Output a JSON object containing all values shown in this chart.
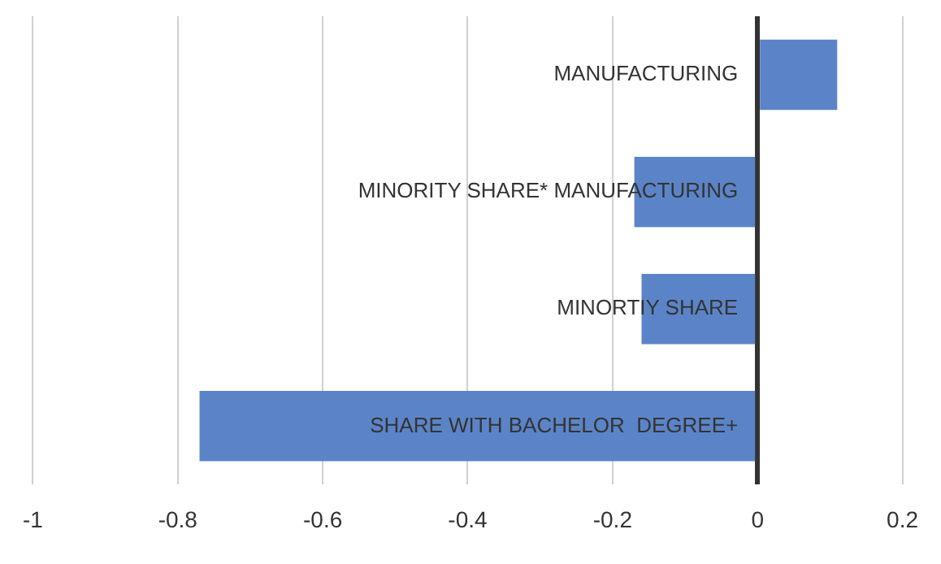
{
  "chart_data": {
    "type": "bar",
    "orientation": "horizontal",
    "categories": [
      "MANUFACTURING",
      "MINORITY SHARE* MANUFACTURING",
      "MINORTIY SHARE",
      "SHARE WITH BACHELOR  DEGREE+"
    ],
    "values": [
      0.11,
      -0.17,
      -0.16,
      -0.77
    ],
    "color": "#5b84c8",
    "xlim": [
      -1,
      0.2
    ],
    "xticks": [
      -1,
      -0.8,
      -0.6,
      -0.4,
      -0.2,
      0,
      0.2
    ],
    "grid": "x"
  }
}
